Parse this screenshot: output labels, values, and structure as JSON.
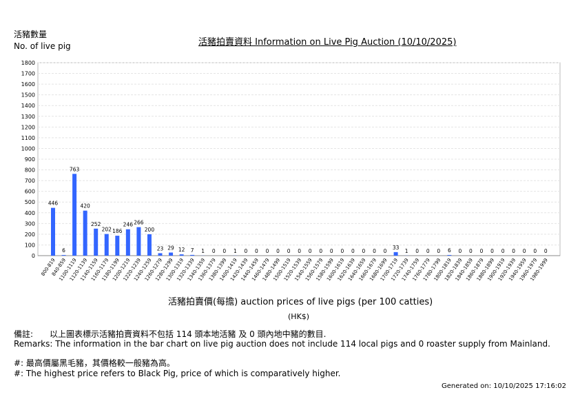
{
  "header": {
    "ylabel_zh": "活豬數量",
    "ylabel_en": "No. of live pig",
    "title": "活豬拍賣資料 Information on Live Pig Auction (10/10/2025)"
  },
  "chart_data": {
    "type": "bar",
    "title": "活豬拍賣資料 Information on Live Pig Auction (10/10/2025)",
    "xlabel": "活豬拍賣價(每擔) auction prices of live pigs (per 100 catties)",
    "xunit": "(HK$)",
    "ylabel": "活豬數量 No. of live pig",
    "ylim": [
      0,
      1800
    ],
    "yticks": [
      0,
      100,
      200,
      300,
      400,
      500,
      600,
      700,
      800,
      900,
      1000,
      1100,
      1200,
      1300,
      1400,
      1500,
      1600,
      1700,
      1800
    ],
    "grid": true,
    "bar_color": "#3366ff",
    "categories": [
      "800-819",
      "840-859",
      "1100-1119",
      "1120-1139",
      "1140-1159",
      "1160-1179",
      "1180-1199",
      "1200-1219",
      "1220-1239",
      "1240-1259",
      "1260-1279",
      "1280-1299",
      "1300-1319",
      "1320-1339",
      "1340-1359",
      "1360-1379",
      "1380-1399",
      "1400-1419",
      "1420-1439",
      "1440-1459",
      "1460-1479",
      "1480-1499",
      "1500-1519",
      "1520-1539",
      "1540-1559",
      "1560-1579",
      "1580-1599",
      "1600-1619",
      "1620-1639",
      "1640-1659",
      "1660-1679",
      "1680-1699",
      "1700-1719",
      "1720-1739",
      "1740-1759",
      "1760-1779",
      "1780-1799",
      "1800-1819",
      "1820-1839",
      "1840-1859",
      "1860-1879",
      "1880-1899",
      "1900-1919",
      "1920-1939",
      "1940-1959",
      "1960-1979",
      "1980-1999"
    ],
    "values": [
      446,
      6,
      763,
      420,
      252,
      202,
      186,
      246,
      266,
      200,
      23,
      29,
      12,
      7,
      1,
      0,
      0,
      1,
      0,
      0,
      0,
      0,
      0,
      0,
      0,
      0,
      0,
      0,
      0,
      0,
      0,
      0,
      33,
      1,
      0,
      0,
      0,
      6,
      0,
      0,
      0,
      0,
      0,
      0,
      0,
      0,
      0
    ]
  },
  "remarks": {
    "label_zh": "備註:",
    "text_zh": "以上圖表標示活豬拍賣資料不包括 114 頭本地活豬 及 0 頭內地中豬的數目.",
    "text_en": "Remarks: The information in the bar chart on live pig auction does not include 114 local pigs and 0 roaster supply from Mainland.",
    "note_zh": "#: 最高價屬黑毛豬，其價格較一般豬為高。",
    "note_en": "#: The highest price refers to Black Pig, price of which is comparatively higher."
  },
  "footer": {
    "generated": "Generated on: 10/10/2025 17:16:02"
  }
}
